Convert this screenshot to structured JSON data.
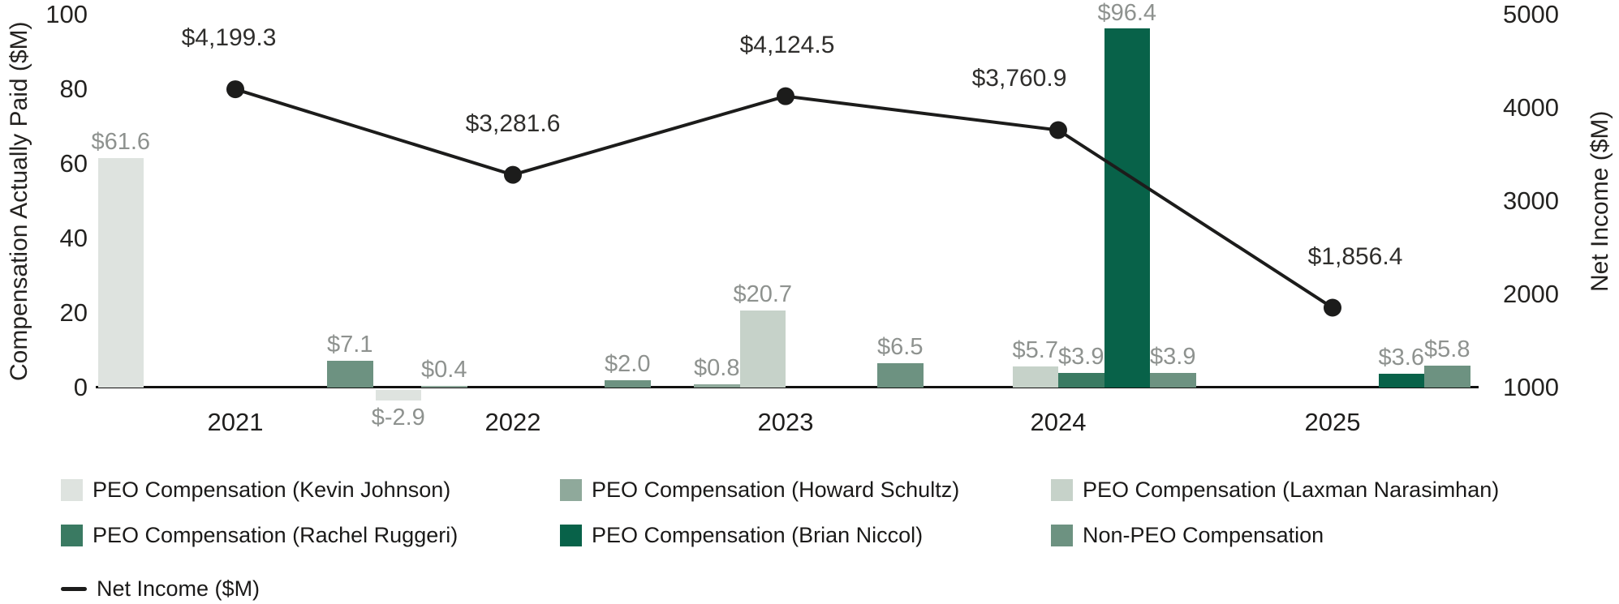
{
  "chart_data": {
    "type": "combo-bar-line",
    "title": "",
    "categories": [
      "2021",
      "2022",
      "2023",
      "2024",
      "2025"
    ],
    "left_axis": {
      "label": "Compensation Actually Paid ($M)",
      "ticks": [
        0,
        20,
        40,
        60,
        80,
        100
      ],
      "range": [
        0,
        100
      ]
    },
    "right_axis": {
      "label": "Net Income ($M)",
      "ticks": [
        1000,
        2000,
        3000,
        4000,
        5000
      ],
      "range": [
        1000,
        5000
      ]
    },
    "grid": "off",
    "legend_position": "bottom",
    "series": [
      {
        "name": "PEO Compensation (Kevin Johnson)",
        "color": "#DEE3DF",
        "values": [
          61.6,
          -2.9,
          null,
          null,
          null
        ],
        "labels": [
          "$61.6",
          "$-2.9",
          null,
          null,
          null
        ]
      },
      {
        "name": "PEO Compensation (Howard Schultz)",
        "color": "#8FA99B",
        "values": [
          null,
          0.4,
          0.8,
          null,
          null
        ],
        "labels": [
          null,
          "$0.4",
          "$0.8",
          null,
          null
        ]
      },
      {
        "name": "PEO Compensation (Laxman Narasimhan)",
        "color": "#C6D2C9",
        "values": [
          null,
          null,
          20.7,
          5.7,
          null
        ],
        "labels": [
          null,
          null,
          "$20.7",
          "$5.7",
          null
        ]
      },
      {
        "name": "PEO Compensation (Rachel Ruggeri)",
        "color": "#3A7A62",
        "values": [
          null,
          null,
          null,
          3.9,
          null
        ],
        "labels": [
          null,
          null,
          null,
          "$3.9",
          null
        ]
      },
      {
        "name": "PEO Compensation (Brian Niccol)",
        "color": "#086249",
        "values": [
          null,
          null,
          null,
          96.4,
          3.6
        ],
        "labels": [
          null,
          null,
          null,
          "$96.4",
          "$3.6"
        ]
      },
      {
        "name": "Non-PEO Compensation",
        "color": "#6D9281",
        "values": [
          7.1,
          2.0,
          6.5,
          3.9,
          5.8
        ],
        "labels": [
          "$7.1",
          "$2.0",
          "$6.5",
          "$3.9",
          "$5.8"
        ]
      }
    ],
    "line": {
      "name": "Net Income ($M)",
      "color": "#1C1C1B",
      "values": [
        4199.3,
        3281.6,
        4124.5,
        3760.9,
        1856.4
      ],
      "labels": [
        "$4,199.3",
        "$3,281.6",
        "$4,124.5",
        "$3,760.9",
        "$1,856.4"
      ]
    }
  }
}
